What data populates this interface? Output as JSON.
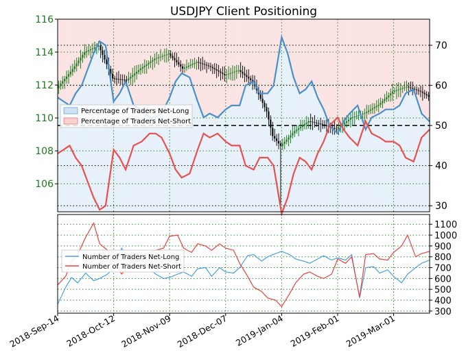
{
  "chart_data": [
    {
      "type": "line",
      "title": "USDJPY Client Positioning",
      "x_ticks": [
        "2018-Sep-14",
        "2018-Oct-12",
        "2018-Nov-09",
        "2018-Dec-07",
        "2019-Jan-04",
        "2019-Feb-01",
        "2019-Mar-01"
      ],
      "x_tick_days": [
        0,
        28,
        56,
        84,
        112,
        140,
        168
      ],
      "x_range_days": [
        0,
        186
      ],
      "y_left": {
        "label": "",
        "ticks": [
          "106",
          "108",
          "110",
          "112",
          "114",
          "116"
        ],
        "range": [
          104.3,
          116
        ]
      },
      "y_right": {
        "label": "",
        "ticks": [
          "30",
          "40",
          "50",
          "60",
          "70"
        ],
        "range": [
          28.5,
          76.5
        ],
        "reference_line": 50
      },
      "grid": true,
      "background": {
        "net_long_color": "#cfe3f5",
        "net_short_color": "#f8d0d0"
      },
      "legend": {
        "placement": "middle-left",
        "entries": [
          "Percentage of Traders Net-Long",
          "Percentage of Traders Net-Short"
        ]
      },
      "price_series": {
        "name": "USDJPY",
        "x": [
          0,
          7,
          14,
          21,
          28,
          35,
          42,
          49,
          56,
          63,
          70,
          77,
          84,
          91,
          98,
          105,
          108,
          112,
          119,
          126,
          133,
          140,
          147,
          154,
          161,
          168,
          175,
          182,
          186
        ],
        "values": [
          111.8,
          112.8,
          114.0,
          114.4,
          112.4,
          112.3,
          113.0,
          113.6,
          113.9,
          113.0,
          113.4,
          113.1,
          112.6,
          112.9,
          112.2,
          110.4,
          108.9,
          108.3,
          109.2,
          109.8,
          109.6,
          109.3,
          110.0,
          110.3,
          110.8,
          111.6,
          111.9,
          111.6,
          111.3
        ],
        "candle_up_color": "#1e7a1e",
        "candle_down_color": "#111111"
      },
      "series": [
        {
          "name": "Percentage of Traders Net-Long",
          "color": "#4a8fc8",
          "x": [
            0,
            3,
            6,
            9,
            12,
            15,
            18,
            21,
            24,
            28,
            31,
            34,
            38,
            42,
            46,
            49,
            52,
            56,
            59,
            62,
            66,
            70,
            73,
            76,
            80,
            84,
            87,
            91,
            94,
            98,
            101,
            105,
            108,
            112,
            115,
            118,
            121,
            124,
            127,
            130,
            133,
            136,
            140,
            143,
            146,
            150,
            154,
            157,
            161,
            164,
            168,
            171,
            174,
            178,
            182,
            186
          ],
          "values": [
            57,
            56,
            55,
            58,
            60,
            64,
            68,
            71,
            70,
            56,
            58,
            61,
            55,
            54,
            52,
            52,
            53,
            57,
            61,
            63,
            62,
            56,
            52,
            53,
            52,
            54,
            55,
            55,
            60,
            61,
            58,
            58,
            60,
            72,
            68,
            62,
            58,
            59,
            61,
            57,
            54,
            50,
            48,
            51,
            53,
            55,
            49,
            52,
            53,
            54,
            54,
            55,
            58,
            59,
            53,
            51
          ]
        },
        {
          "name": "Percentage of Traders Net-Short",
          "color": "#e85050",
          "x": [
            0,
            3,
            6,
            9,
            12,
            15,
            18,
            21,
            24,
            28,
            31,
            34,
            38,
            42,
            46,
            49,
            52,
            56,
            59,
            62,
            66,
            70,
            73,
            76,
            80,
            84,
            87,
            91,
            94,
            98,
            101,
            105,
            108,
            112,
            115,
            118,
            121,
            124,
            127,
            130,
            133,
            136,
            140,
            143,
            146,
            150,
            154,
            157,
            161,
            164,
            168,
            171,
            174,
            178,
            182,
            186
          ],
          "values": [
            43,
            44,
            45,
            42,
            40,
            36,
            32,
            29,
            30,
            44,
            42,
            39,
            45,
            46,
            48,
            48,
            47,
            43,
            39,
            37,
            38,
            44,
            48,
            47,
            48,
            46,
            45,
            45,
            40,
            39,
            42,
            42,
            40,
            28,
            32,
            38,
            42,
            41,
            39,
            43,
            46,
            50,
            52,
            49,
            47,
            45,
            51,
            48,
            47,
            46,
            46,
            45,
            42,
            41,
            47,
            49
          ]
        }
      ]
    },
    {
      "type": "line",
      "y_ticks": [
        "300",
        "400",
        "500",
        "600",
        "700",
        "800",
        "900",
        "1000",
        "1100"
      ],
      "y_range": [
        280,
        1190
      ],
      "grid": true,
      "legend": {
        "placement": "left",
        "entries": [
          "Number of Traders Net-Long",
          "Number of Traders Net-Short"
        ]
      },
      "series": [
        {
          "name": "Number of Traders Net-Long",
          "color": "#4aa0e0",
          "x": [
            0,
            4,
            7,
            10,
            14,
            18,
            21,
            25,
            28,
            32,
            35,
            38,
            42,
            46,
            49,
            53,
            56,
            60,
            63,
            67,
            70,
            74,
            77,
            81,
            84,
            88,
            91,
            95,
            98,
            102,
            105,
            109,
            112,
            116,
            119,
            123,
            126,
            130,
            133,
            137,
            140,
            144,
            147,
            151,
            154,
            158,
            161,
            165,
            168,
            172,
            175,
            179,
            182,
            186
          ],
          "values": [
            360,
            520,
            610,
            560,
            650,
            580,
            600,
            640,
            700,
            880,
            800,
            740,
            780,
            690,
            640,
            600,
            610,
            640,
            660,
            620,
            690,
            700,
            620,
            700,
            660,
            650,
            700,
            810,
            820,
            760,
            800,
            830,
            850,
            820,
            780,
            760,
            740,
            780,
            810,
            770,
            790,
            770,
            820,
            420,
            700,
            710,
            650,
            680,
            620,
            560,
            640,
            700,
            740,
            770
          ]
        },
        {
          "name": "Number of Traders Net-Short",
          "color": "#e84040",
          "x": [
            0,
            4,
            7,
            10,
            14,
            18,
            21,
            25,
            28,
            32,
            35,
            38,
            42,
            46,
            49,
            53,
            56,
            60,
            63,
            67,
            70,
            74,
            77,
            81,
            84,
            88,
            91,
            95,
            98,
            102,
            105,
            109,
            112,
            116,
            119,
            123,
            126,
            130,
            133,
            137,
            140,
            144,
            147,
            151,
            154,
            158,
            161,
            165,
            168,
            172,
            175,
            179,
            182,
            186
          ],
          "values": [
            540,
            620,
            760,
            820,
            980,
            1110,
            920,
            860,
            760,
            640,
            700,
            780,
            760,
            840,
            860,
            880,
            990,
            1000,
            880,
            840,
            920,
            900,
            860,
            920,
            880,
            860,
            740,
            620,
            520,
            480,
            420,
            400,
            340,
            460,
            560,
            640,
            660,
            620,
            600,
            640,
            780,
            740,
            800,
            430,
            820,
            830,
            780,
            770,
            840,
            900,
            1000,
            800,
            830,
            850
          ]
        }
      ]
    }
  ]
}
